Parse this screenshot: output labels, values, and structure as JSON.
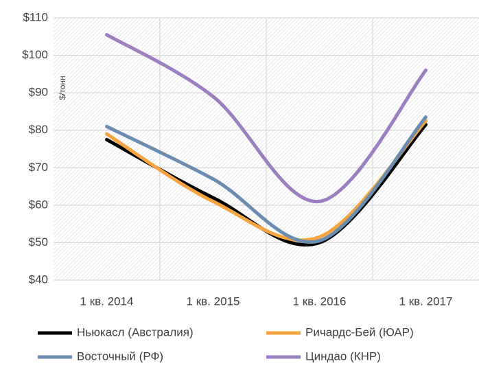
{
  "chart_data": {
    "type": "line",
    "y_label": "$/тонн",
    "categories": [
      "1 кв. 2014",
      "1 кв. 2015",
      "1 кв. 2016",
      "1 кв. 2017"
    ],
    "series": [
      {
        "name": "Ньюкасл (Австралия)",
        "color": "#000000",
        "values": [
          77.5,
          62,
          50,
          81.5
        ]
      },
      {
        "name": "Ричардс-Бей (ЮАР)",
        "color": "#f4a540",
        "values": [
          79,
          61,
          51.5,
          82.5
        ]
      },
      {
        "name": "Восточный (РФ)",
        "color": "#6a8cb0",
        "values": [
          81,
          67,
          50.5,
          83.5
        ]
      },
      {
        "name": "Циндао (КНР)",
        "color": "#9b7fc0",
        "values": [
          105.5,
          89,
          61,
          96
        ]
      }
    ],
    "ylim": [
      40,
      110
    ],
    "yticks": [
      {
        "value": 40,
        "label": "$40"
      },
      {
        "value": 50,
        "label": "$50"
      },
      {
        "value": 60,
        "label": "$60"
      },
      {
        "value": 70,
        "label": "$70"
      },
      {
        "value": 80,
        "label": "$80"
      },
      {
        "value": 90,
        "label": "$90"
      },
      {
        "value": 100,
        "label": "$100"
      },
      {
        "value": 110,
        "label": "$110"
      }
    ],
    "grid": true
  }
}
